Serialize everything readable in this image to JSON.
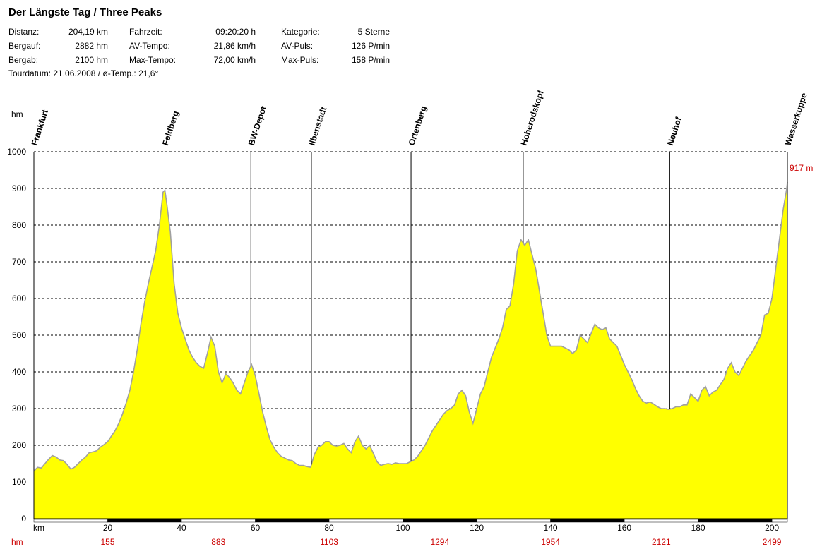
{
  "header": {
    "title": "Der Längste Tag / Three Peaks",
    "stats": {
      "distanz_label": "Distanz:",
      "distanz_value": "204,19 km",
      "bergauf_label": "Bergauf:",
      "bergauf_value": "2882 hm",
      "bergab_label": "Bergab:",
      "bergab_value": "2100 hm",
      "fahrzeit_label": "Fahrzeit:",
      "fahrzeit_value": "09:20:20 h",
      "avtempo_label": "AV-Tempo:",
      "avtempo_value": "21,86 km/h",
      "maxtempo_label": "Max-Tempo:",
      "maxtempo_value": "72,00 km/h",
      "kategorie_label": "Kategorie:",
      "kategorie_value": "5 Sterne",
      "avpuls_label": "AV-Puls:",
      "avpuls_value": "126 P/min",
      "maxpuls_label": "Max-Puls:",
      "maxpuls_value": "158 P/min"
    },
    "tourdate": "Tourdatum: 21.06.2008  /  ø-Temp.: 21,6°"
  },
  "chart_data": {
    "type": "area",
    "ylabel": "hm",
    "xlabel": "km",
    "ylim": [
      0,
      1000
    ],
    "xlim": [
      0,
      204.19
    ],
    "yticks": [
      0,
      100,
      200,
      300,
      400,
      500,
      600,
      700,
      800,
      900,
      1000
    ],
    "xticks": [
      20,
      40,
      60,
      80,
      100,
      120,
      140,
      160,
      180,
      200
    ],
    "grid": "horizontal dashed",
    "fill_color": "#ffff00",
    "line_color": "#a0a0a0",
    "end_label": "917 m",
    "end_label_color": "#cc0000",
    "cum_climb_label": "hm",
    "cum_climb": [
      {
        "km": 20,
        "hm": "155"
      },
      {
        "km": 50,
        "hm": "883"
      },
      {
        "km": 80,
        "hm": "1103"
      },
      {
        "km": 110,
        "hm": "1294"
      },
      {
        "km": 140,
        "hm": "1954"
      },
      {
        "km": 170,
        "hm": "2121"
      },
      {
        "km": 200,
        "hm": "2499"
      }
    ],
    "waypoints": [
      {
        "name": "Frankfurt",
        "km": 0
      },
      {
        "name": "Feldberg",
        "km": 35.5
      },
      {
        "name": "BW-Depot",
        "km": 58.8
      },
      {
        "name": "Ilbenstadt",
        "km": 75.2
      },
      {
        "name": "Ortenberg",
        "km": 102.2
      },
      {
        "name": "Hoherodskopf",
        "km": 132.6
      },
      {
        "name": "Neuhof",
        "km": 172.3
      },
      {
        "name": "Wasserkuppe",
        "km": 204.19
      }
    ],
    "profile": [
      [
        0,
        130
      ],
      [
        1,
        140
      ],
      [
        2,
        138
      ],
      [
        3,
        150
      ],
      [
        4,
        162
      ],
      [
        5,
        172
      ],
      [
        6,
        168
      ],
      [
        7,
        160
      ],
      [
        8,
        158
      ],
      [
        9,
        148
      ],
      [
        10,
        135
      ],
      [
        11,
        140
      ],
      [
        12,
        150
      ],
      [
        13,
        160
      ],
      [
        14,
        168
      ],
      [
        15,
        180
      ],
      [
        16,
        182
      ],
      [
        17,
        185
      ],
      [
        18,
        195
      ],
      [
        19,
        202
      ],
      [
        20,
        210
      ],
      [
        21,
        225
      ],
      [
        22,
        240
      ],
      [
        23,
        260
      ],
      [
        24,
        285
      ],
      [
        25,
        315
      ],
      [
        26,
        350
      ],
      [
        27,
        400
      ],
      [
        28,
        460
      ],
      [
        29,
        530
      ],
      [
        30,
        590
      ],
      [
        31,
        640
      ],
      [
        32,
        685
      ],
      [
        33,
        730
      ],
      [
        34,
        800
      ],
      [
        35,
        890
      ],
      [
        35.5,
        895
      ],
      [
        36,
        860
      ],
      [
        37,
        780
      ],
      [
        38,
        640
      ],
      [
        39,
        560
      ],
      [
        40,
        520
      ],
      [
        41,
        490
      ],
      [
        42,
        460
      ],
      [
        43,
        440
      ],
      [
        44,
        425
      ],
      [
        45,
        415
      ],
      [
        46,
        410
      ],
      [
        47,
        450
      ],
      [
        48,
        495
      ],
      [
        49,
        470
      ],
      [
        50,
        400
      ],
      [
        51,
        370
      ],
      [
        52,
        395
      ],
      [
        53,
        385
      ],
      [
        54,
        370
      ],
      [
        55,
        350
      ],
      [
        56,
        340
      ],
      [
        57,
        370
      ],
      [
        58,
        400
      ],
      [
        59,
        420
      ],
      [
        60,
        390
      ],
      [
        61,
        340
      ],
      [
        62,
        290
      ],
      [
        63,
        250
      ],
      [
        64,
        215
      ],
      [
        65,
        195
      ],
      [
        66,
        180
      ],
      [
        67,
        170
      ],
      [
        68,
        165
      ],
      [
        69,
        160
      ],
      [
        70,
        158
      ],
      [
        71,
        150
      ],
      [
        72,
        145
      ],
      [
        73,
        145
      ],
      [
        74,
        142
      ],
      [
        75,
        140
      ],
      [
        76,
        175
      ],
      [
        77,
        195
      ],
      [
        78,
        200
      ],
      [
        79,
        210
      ],
      [
        80,
        210
      ],
      [
        81,
        200
      ],
      [
        82,
        198
      ],
      [
        83,
        200
      ],
      [
        84,
        205
      ],
      [
        85,
        190
      ],
      [
        86,
        180
      ],
      [
        87,
        210
      ],
      [
        88,
        225
      ],
      [
        89,
        200
      ],
      [
        90,
        190
      ],
      [
        91,
        200
      ],
      [
        92,
        178
      ],
      [
        93,
        155
      ],
      [
        94,
        145
      ],
      [
        95,
        148
      ],
      [
        96,
        150
      ],
      [
        97,
        148
      ],
      [
        98,
        152
      ],
      [
        99,
        150
      ],
      [
        100,
        150
      ],
      [
        101,
        150
      ],
      [
        102,
        155
      ],
      [
        103,
        160
      ],
      [
        104,
        170
      ],
      [
        105,
        185
      ],
      [
        106,
        200
      ],
      [
        107,
        220
      ],
      [
        108,
        240
      ],
      [
        109,
        255
      ],
      [
        110,
        270
      ],
      [
        111,
        285
      ],
      [
        112,
        295
      ],
      [
        113,
        300
      ],
      [
        114,
        310
      ],
      [
        115,
        340
      ],
      [
        116,
        350
      ],
      [
        117,
        335
      ],
      [
        118,
        290
      ],
      [
        119,
        260
      ],
      [
        120,
        300
      ],
      [
        121,
        340
      ],
      [
        122,
        360
      ],
      [
        123,
        400
      ],
      [
        124,
        440
      ],
      [
        125,
        465
      ],
      [
        126,
        490
      ],
      [
        127,
        520
      ],
      [
        128,
        570
      ],
      [
        129,
        580
      ],
      [
        130,
        640
      ],
      [
        131,
        730
      ],
      [
        132,
        760
      ],
      [
        133,
        745
      ],
      [
        134,
        760
      ],
      [
        135,
        720
      ],
      [
        136,
        680
      ],
      [
        137,
        620
      ],
      [
        138,
        560
      ],
      [
        139,
        500
      ],
      [
        140,
        470
      ],
      [
        141,
        470
      ],
      [
        142,
        470
      ],
      [
        143,
        470
      ],
      [
        144,
        465
      ],
      [
        145,
        460
      ],
      [
        146,
        450
      ],
      [
        147,
        460
      ],
      [
        148,
        500
      ],
      [
        149,
        490
      ],
      [
        150,
        480
      ],
      [
        151,
        505
      ],
      [
        152,
        530
      ],
      [
        153,
        520
      ],
      [
        154,
        515
      ],
      [
        155,
        520
      ],
      [
        156,
        490
      ],
      [
        157,
        480
      ],
      [
        158,
        470
      ],
      [
        159,
        445
      ],
      [
        160,
        420
      ],
      [
        161,
        400
      ],
      [
        162,
        380
      ],
      [
        163,
        355
      ],
      [
        164,
        335
      ],
      [
        165,
        320
      ],
      [
        166,
        315
      ],
      [
        167,
        318
      ],
      [
        168,
        312
      ],
      [
        169,
        305
      ],
      [
        170,
        300
      ],
      [
        171,
        300
      ],
      [
        172,
        298
      ],
      [
        173,
        300
      ],
      [
        174,
        305
      ],
      [
        175,
        305
      ],
      [
        176,
        310
      ],
      [
        177,
        310
      ],
      [
        178,
        340
      ],
      [
        179,
        330
      ],
      [
        180,
        320
      ],
      [
        181,
        350
      ],
      [
        182,
        360
      ],
      [
        183,
        335
      ],
      [
        184,
        345
      ],
      [
        185,
        350
      ],
      [
        186,
        365
      ],
      [
        187,
        380
      ],
      [
        188,
        410
      ],
      [
        189,
        425
      ],
      [
        190,
        400
      ],
      [
        191,
        390
      ],
      [
        192,
        410
      ],
      [
        193,
        430
      ],
      [
        194,
        445
      ],
      [
        195,
        460
      ],
      [
        196,
        480
      ],
      [
        197,
        500
      ],
      [
        198,
        555
      ],
      [
        199,
        560
      ],
      [
        200,
        600
      ],
      [
        201,
        680
      ],
      [
        202,
        760
      ],
      [
        203,
        840
      ],
      [
        204,
        900
      ],
      [
        204.19,
        917
      ]
    ]
  }
}
